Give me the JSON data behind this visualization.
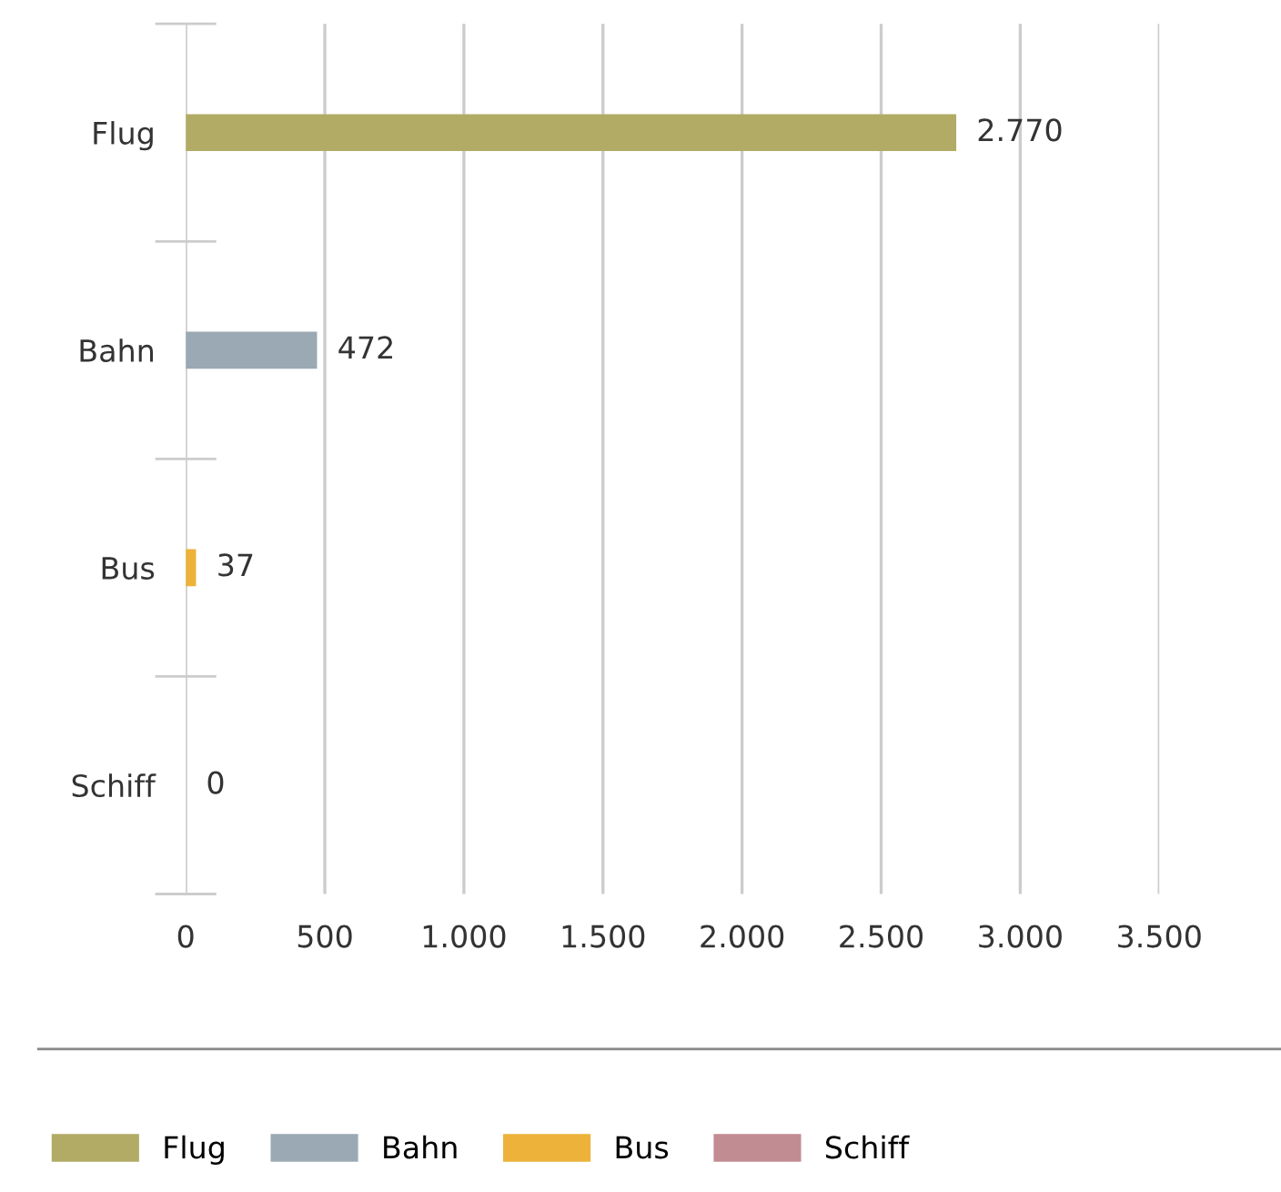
{
  "chart_data": {
    "type": "bar",
    "orientation": "horizontal",
    "categories": [
      "Flug",
      "Bahn",
      "Bus",
      "Schiff"
    ],
    "series": [
      {
        "name": "Flug",
        "color": "#b2ab66",
        "values": [
          2770,
          null,
          null,
          null
        ],
        "value_labels": [
          "2.770",
          null,
          null,
          null
        ]
      },
      {
        "name": "Bahn",
        "color": "#9aa9b3",
        "values": [
          null,
          472,
          null,
          null
        ],
        "value_labels": [
          null,
          "472",
          null,
          null
        ]
      },
      {
        "name": "Bus",
        "color": "#ecb23a",
        "values": [
          null,
          null,
          37,
          null
        ],
        "value_labels": [
          null,
          null,
          "37",
          null
        ]
      },
      {
        "name": "Schiff",
        "color": "#c28c93",
        "values": [
          null,
          null,
          null,
          0
        ],
        "value_labels": [
          null,
          null,
          null,
          "0"
        ]
      }
    ],
    "xlim": [
      0,
      3500
    ],
    "xticks": [
      0,
      500,
      {
        "value": 1000,
        "label": "1.000"
      },
      {
        "value": 1500,
        "label": "1.500"
      },
      {
        "value": 2000,
        "label": "2.000"
      },
      {
        "value": 2500,
        "label": "2.500"
      },
      {
        "value": 3000,
        "label": "3.000"
      },
      {
        "value": 3500,
        "label": "3.500"
      }
    ],
    "grid": "x",
    "legend": "bottom"
  }
}
